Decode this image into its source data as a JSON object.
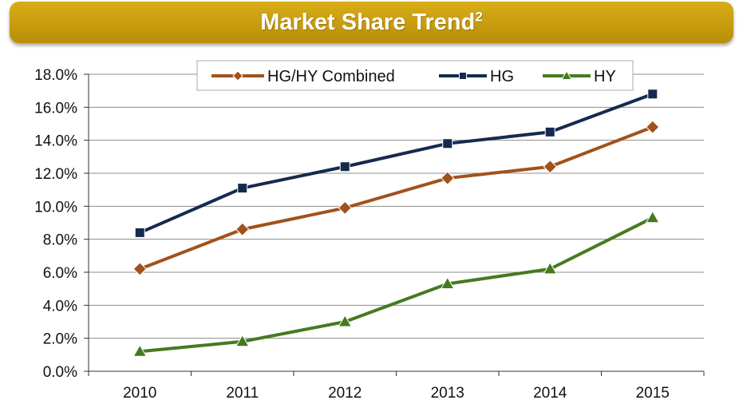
{
  "header": {
    "title": "Market Share Trend",
    "footnote": "2"
  },
  "colors": {
    "banner": "#c99e10",
    "grid": "#8c8c8c"
  },
  "chart_data": {
    "type": "line",
    "x": [
      "2010",
      "2011",
      "2012",
      "2013",
      "2014",
      "2015"
    ],
    "ylim": [
      0,
      18
    ],
    "ytick_step": 2,
    "ytick_format": "percent_1dp",
    "grid": true,
    "legend_position": "top-right",
    "series": [
      {
        "name": "HG/HY Combined",
        "values": [
          6.2,
          8.6,
          9.9,
          11.7,
          12.4,
          14.8
        ],
        "color": "#a0521c",
        "marker": "diamond"
      },
      {
        "name": "HG",
        "values": [
          8.4,
          11.1,
          12.4,
          13.8,
          14.5,
          16.8
        ],
        "color": "#162a4f",
        "marker": "square"
      },
      {
        "name": "HY",
        "values": [
          1.2,
          1.8,
          3.0,
          5.3,
          6.2,
          9.3
        ],
        "color": "#467a1e",
        "marker": "triangle"
      }
    ]
  }
}
